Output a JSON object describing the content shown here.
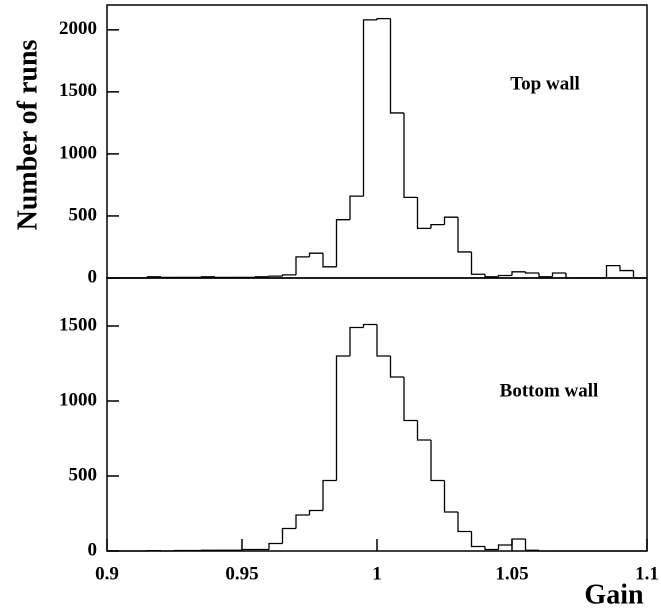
{
  "chart_data": [
    {
      "type": "histogram",
      "ylabel": "Number of runs",
      "annotation": "Top wall",
      "color": "#000000",
      "bins": [
        0.9,
        0.905,
        0.91,
        0.915,
        0.92,
        0.925,
        0.93,
        0.935,
        0.94,
        0.945,
        0.95,
        0.955,
        0.96,
        0.965,
        0.97,
        0.975,
        0.98,
        0.985,
        0.99,
        0.995,
        1.0,
        1.005,
        1.01,
        1.015,
        1.02,
        1.025,
        1.03,
        1.035,
        1.04,
        1.045,
        1.05,
        1.055,
        1.06,
        1.065,
        1.07,
        1.075,
        1.08,
        1.085,
        1.09,
        1.095,
        1.1
      ],
      "values": [
        0,
        0,
        0,
        10,
        5,
        5,
        5,
        10,
        5,
        5,
        5,
        10,
        15,
        25,
        170,
        200,
        90,
        470,
        660,
        2080,
        2090,
        1330,
        650,
        400,
        430,
        490,
        210,
        30,
        10,
        20,
        50,
        40,
        10,
        40,
        0,
        0,
        0,
        100,
        60,
        0
      ],
      "xlim": [
        0.9,
        1.1
      ],
      "ylim": [
        0,
        2200
      ],
      "yticks": [
        0,
        500,
        1000,
        1500,
        2000
      ]
    },
    {
      "type": "histogram",
      "xlabel": "Gain",
      "annotation": "Bottom wall",
      "color": "#000000",
      "bins": [
        0.9,
        0.905,
        0.91,
        0.915,
        0.92,
        0.925,
        0.93,
        0.935,
        0.94,
        0.945,
        0.95,
        0.955,
        0.96,
        0.965,
        0.97,
        0.975,
        0.98,
        0.985,
        0.99,
        0.995,
        1.0,
        1.005,
        1.01,
        1.015,
        1.02,
        1.025,
        1.03,
        1.035,
        1.04,
        1.045,
        1.05,
        1.055,
        1.06,
        1.065,
        1.07,
        1.075,
        1.08,
        1.085,
        1.09,
        1.095,
        1.1
      ],
      "values": [
        0,
        0,
        0,
        2,
        0,
        3,
        3,
        5,
        5,
        5,
        10,
        10,
        50,
        150,
        240,
        270,
        470,
        1300,
        1490,
        1510,
        1300,
        1160,
        870,
        740,
        470,
        260,
        130,
        30,
        10,
        40,
        80,
        5,
        0,
        0,
        0,
        0,
        0,
        0,
        0,
        0
      ],
      "xlim": [
        0.9,
        1.1
      ],
      "ylim": [
        0,
        1820
      ],
      "yticks": [
        0,
        500,
        1000,
        1500
      ],
      "xticks": [
        0.9,
        0.95,
        1,
        1.05,
        1.1
      ]
    }
  ]
}
